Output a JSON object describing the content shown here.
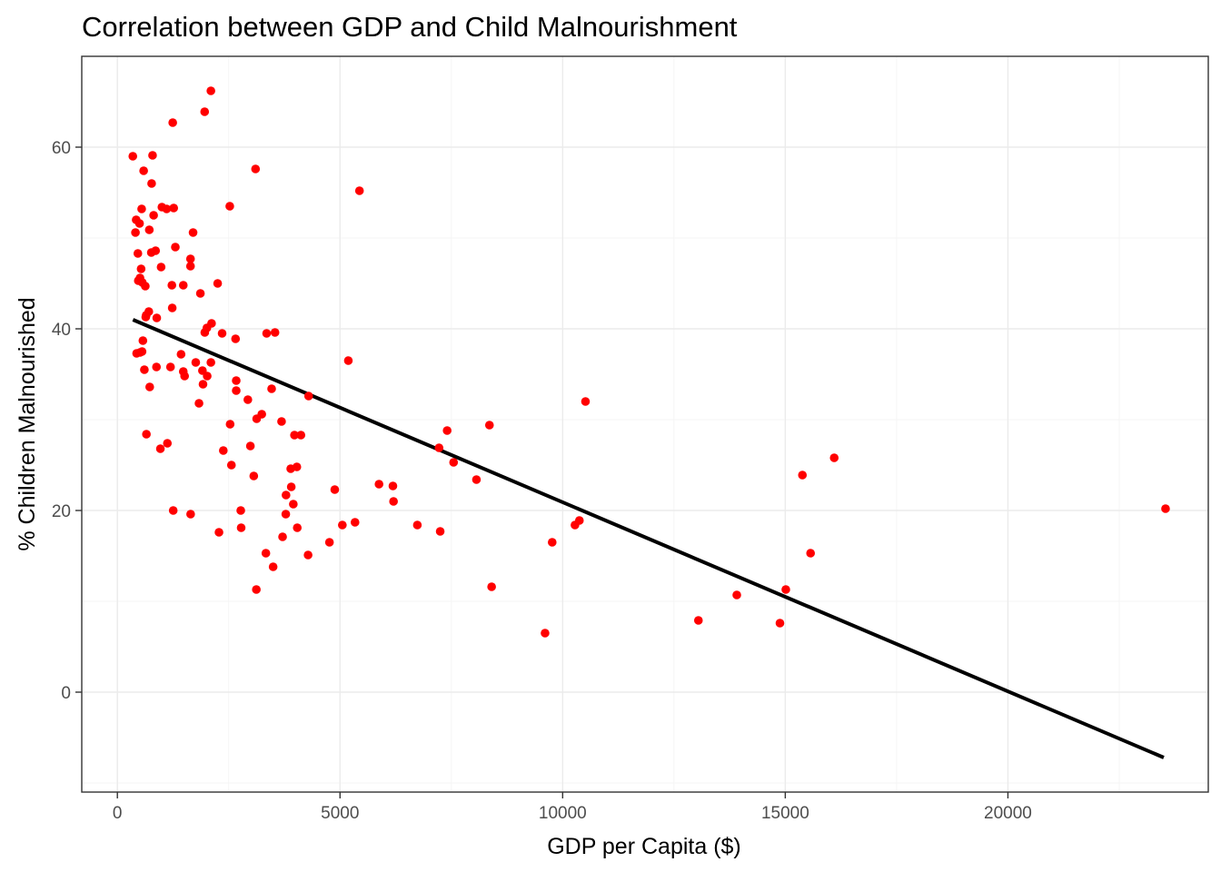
{
  "chart_data": {
    "type": "scatter",
    "title": "Correlation between GDP and Child Malnourishment",
    "xlabel": "GDP per Capita ($)",
    "ylabel": "% Children Malnourished",
    "xlim": [
      -800,
      24500
    ],
    "ylim": [
      -11,
      70
    ],
    "x_ticks": [
      0,
      5000,
      10000,
      15000,
      20000
    ],
    "y_ticks": [
      0,
      20,
      40,
      60
    ],
    "grid": true,
    "point_color": "#ff0000",
    "line_color": "#000000",
    "trend_line": {
      "x": [
        350,
        23500
      ],
      "y": [
        41.0,
        -7.2
      ]
    },
    "points": [
      [
        347,
        59.0
      ],
      [
        790,
        59.1
      ],
      [
        590,
        57.4
      ],
      [
        769,
        56.0
      ],
      [
        2100,
        66.2
      ],
      [
        1960,
        63.9
      ],
      [
        1243,
        62.7
      ],
      [
        3103,
        57.6
      ],
      [
        5437,
        55.2
      ],
      [
        422,
        52.0
      ],
      [
        1000,
        53.4
      ],
      [
        1265,
        53.3
      ],
      [
        545,
        53.2
      ],
      [
        1106,
        53.2
      ],
      [
        2524,
        53.5
      ],
      [
        814,
        52.5
      ],
      [
        498,
        51.6
      ],
      [
        406,
        50.6
      ],
      [
        717,
        50.9
      ],
      [
        1700,
        50.6
      ],
      [
        1302,
        49.0
      ],
      [
        858,
        48.6
      ],
      [
        762,
        48.4
      ],
      [
        460,
        48.3
      ],
      [
        1642,
        47.7
      ],
      [
        982,
        46.8
      ],
      [
        1642,
        46.9
      ],
      [
        533,
        46.6
      ],
      [
        508,
        45.6
      ],
      [
        470,
        45.3
      ],
      [
        560,
        45.1
      ],
      [
        1480,
        44.8
      ],
      [
        627,
        44.7
      ],
      [
        1224,
        44.8
      ],
      [
        2252,
        45.0
      ],
      [
        1864,
        43.9
      ],
      [
        1232,
        42.3
      ],
      [
        706,
        41.9
      ],
      [
        637,
        41.3
      ],
      [
        884,
        41.2
      ],
      [
        647,
        41.5
      ],
      [
        2115,
        40.6
      ],
      [
        2010,
        40.1
      ],
      [
        1963,
        39.6
      ],
      [
        3352,
        39.5
      ],
      [
        3540,
        39.6
      ],
      [
        2352,
        39.5
      ],
      [
        2654,
        38.9
      ],
      [
        573,
        38.7
      ],
      [
        554,
        37.5
      ],
      [
        509,
        37.4
      ],
      [
        432,
        37.3
      ],
      [
        1430,
        37.2
      ],
      [
        1760,
        36.3
      ],
      [
        2100,
        36.3
      ],
      [
        5187,
        36.5
      ],
      [
        606,
        35.5
      ],
      [
        878,
        35.8
      ],
      [
        1193,
        35.8
      ],
      [
        1910,
        35.4
      ],
      [
        1480,
        35.3
      ],
      [
        1510,
        34.8
      ],
      [
        2017,
        34.8
      ],
      [
        2669,
        34.3
      ],
      [
        1923,
        33.9
      ],
      [
        726,
        33.6
      ],
      [
        3464,
        33.4
      ],
      [
        2669,
        33.2
      ],
      [
        4295,
        32.6
      ],
      [
        10513,
        32.0
      ],
      [
        2930,
        32.2
      ],
      [
        1833,
        31.8
      ],
      [
        3243,
        30.6
      ],
      [
        3128,
        30.1
      ],
      [
        3687,
        29.8
      ],
      [
        2532,
        29.5
      ],
      [
        8356,
        29.4
      ],
      [
        7406,
        28.8
      ],
      [
        652,
        28.4
      ],
      [
        3977,
        28.3
      ],
      [
        4122,
        28.3
      ],
      [
        1123,
        27.4
      ],
      [
        2987,
        27.1
      ],
      [
        7224,
        26.9
      ],
      [
        966,
        26.8
      ],
      [
        2379,
        26.6
      ],
      [
        7551,
        25.3
      ],
      [
        16099,
        25.8
      ],
      [
        2561,
        25.0
      ],
      [
        4030,
        24.8
      ],
      [
        3893,
        24.6
      ],
      [
        15385,
        23.9
      ],
      [
        3063,
        23.8
      ],
      [
        8064,
        23.4
      ],
      [
        5876,
        22.9
      ],
      [
        6188,
        22.7
      ],
      [
        3905,
        22.6
      ],
      [
        4882,
        22.3
      ],
      [
        3787,
        21.7
      ],
      [
        6202,
        21.0
      ],
      [
        3951,
        20.7
      ],
      [
        1254,
        20.0
      ],
      [
        2771,
        20.0
      ],
      [
        23540,
        20.2
      ],
      [
        1645,
        19.6
      ],
      [
        3782,
        19.6
      ],
      [
        5052,
        18.4
      ],
      [
        5337,
        18.7
      ],
      [
        6737,
        18.4
      ],
      [
        10376,
        18.9
      ],
      [
        10277,
        18.4
      ],
      [
        4040,
        18.1
      ],
      [
        2780,
        18.1
      ],
      [
        2282,
        17.6
      ],
      [
        7250,
        17.7
      ],
      [
        3710,
        17.1
      ],
      [
        4763,
        16.5
      ],
      [
        9765,
        16.5
      ],
      [
        3335,
        15.3
      ],
      [
        4283,
        15.1
      ],
      [
        15568,
        15.3
      ],
      [
        3498,
        13.8
      ],
      [
        3121,
        11.3
      ],
      [
        8405,
        11.6
      ],
      [
        15012,
        11.3
      ],
      [
        13911,
        10.7
      ],
      [
        13049,
        7.9
      ],
      [
        14880,
        7.6
      ],
      [
        9605,
        6.5
      ]
    ]
  }
}
